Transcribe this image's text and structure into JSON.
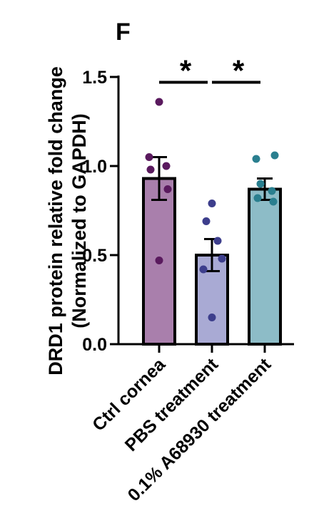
{
  "panel_label": "F",
  "chart_data": {
    "type": "bar",
    "title": "",
    "ylabel_line1": "DRD1 protein relative fold change",
    "ylabel_line2": "(Normalized to GAPDH)",
    "xlabel": "",
    "ylim": [
      0,
      1.5
    ],
    "yticks": [
      0.0,
      0.5,
      1.0,
      1.5
    ],
    "ytick_labels": [
      "0.0",
      "0.5",
      "1.0",
      "1.5"
    ],
    "categories": [
      "Ctrl cornea",
      "PBS treatment",
      "0.1% A68930 treatment"
    ],
    "values": [
      0.93,
      0.5,
      0.87
    ],
    "errors": [
      0.12,
      0.09,
      0.06
    ],
    "bar_colors": [
      "#a97fac",
      "#a9aad4",
      "#8dbcc7"
    ],
    "dot_colors": [
      "#5a1a5e",
      "#3d3e8c",
      "#2a7f8f"
    ],
    "points": [
      [
        1.36,
        1.05,
        1.0,
        0.98,
        0.87,
        0.47
      ],
      [
        0.79,
        0.69,
        0.58,
        0.48,
        0.42,
        0.15
      ],
      [
        1.06,
        1.04,
        0.9,
        0.86,
        0.82,
        0.8
      ]
    ],
    "significance": [
      {
        "from": 0,
        "to": 1,
        "y": 1.55,
        "label": "*"
      },
      {
        "from": 1,
        "to": 2,
        "y": 1.55,
        "label": "*"
      }
    ]
  }
}
